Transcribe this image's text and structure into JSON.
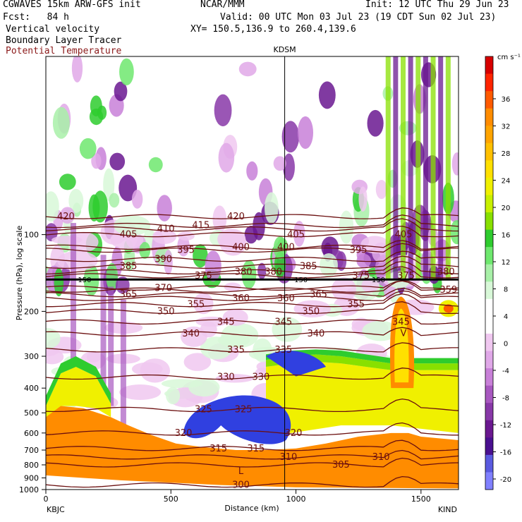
{
  "header": {
    "model": "CGWAVES 15km ARW-GFS init",
    "org": "NCAR/MMM",
    "init": "Init: 12 UTC Thu 29 Jun 23",
    "fcst": "Fcst:   84 h",
    "valid": "Valid: 00 UTC Mon 03 Jul 23 (19 CDT Sun 02 Jul 23)",
    "field1": "Vertical velocity",
    "field2": "Boundary Layer Tracer",
    "field3": "Potential Temperature",
    "xy": "XY= 150.5,136.9 to 260.4,139.6",
    "field3_color": "#8b1a1a"
  },
  "chart_data": {
    "type": "heatmap",
    "title": "",
    "station_marker": "KDSM",
    "station_marker_km": 955,
    "xlabel": "Distance (km)",
    "ylabel": "Pressure (hPa), log scale",
    "xlim": [
      0,
      1650
    ],
    "ylim": [
      1000,
      20
    ],
    "y_scale": "log",
    "x_ticks": [
      0,
      500,
      1000,
      1500
    ],
    "x_tick_labels": [
      "0",
      "500",
      "1000",
      "1500"
    ],
    "y_ticks": [
      100,
      200,
      300,
      400,
      500,
      600,
      700,
      800,
      900,
      1000
    ],
    "y_tick_labels": [
      "100",
      "200",
      "300",
      "400",
      "500",
      "600",
      "700",
      "800",
      "900",
      "1000"
    ],
    "left_endpoint": "KBJC",
    "right_endpoint": "KIND",
    "tropopause_marker": {
      "pressure": 150,
      "label": "150"
    },
    "colorbar": {
      "units": "cm s⁻¹",
      "labels": [
        "36",
        "32",
        "28",
        "24",
        "20",
        "16",
        "12",
        "8",
        "4",
        "0",
        "-4",
        "-8",
        "-12",
        "-16",
        "-20"
      ],
      "colors": [
        "#d70000",
        "#ff2400",
        "#ff5a00",
        "#ff8c00",
        "#ffa400",
        "#ffc000",
        "#ffe000",
        "#f0f000",
        "#c8f000",
        "#88e000",
        "#2ecc2e",
        "#6ee86e",
        "#a8f0a8",
        "#d8f8d8",
        "#ffffff",
        "#ffffff",
        "#f0c8f0",
        "#e0a8e8",
        "#c880d8",
        "#a858c0",
        "#8838a8",
        "#6a1890",
        "#4a1090",
        "#5a5ae0",
        "#8080ff"
      ]
    },
    "theta_contours": [
      {
        "value": 420,
        "p": 85,
        "labels_km": [
          80,
          760
        ]
      },
      {
        "value": 415,
        "p": 92,
        "labels_km": [
          620
        ]
      },
      {
        "value": 410,
        "p": 95,
        "labels_km": [
          480
        ]
      },
      {
        "value": 405,
        "p": 100,
        "labels_km": [
          330,
          1000,
          1430
        ]
      },
      {
        "value": 400,
        "p": 112,
        "labels_km": [
          780,
          960
        ]
      },
      {
        "value": 395,
        "p": 115,
        "labels_km": [
          560,
          1250
        ]
      },
      {
        "value": 390,
        "p": 125,
        "labels_km": [
          470
        ]
      },
      {
        "value": 385,
        "p": 133,
        "labels_km": [
          330,
          1050
        ]
      },
      {
        "value": 380,
        "p": 140,
        "labels_km": [
          790,
          910,
          1600
        ]
      },
      {
        "value": 375,
        "p": 145,
        "labels_km": [
          630,
          1260,
          1440
        ]
      },
      {
        "value": 370,
        "p": 162,
        "labels_km": [
          470
        ]
      },
      {
        "value": 365,
        "p": 172,
        "labels_km": [
          330,
          1090
        ]
      },
      {
        "value": 360,
        "p": 178,
        "labels_km": [
          780,
          960
        ]
      },
      {
        "value": 359,
        "p": 165,
        "labels_km": [
          1610
        ]
      },
      {
        "value": 355,
        "p": 188,
        "labels_km": [
          600,
          1240
        ]
      },
      {
        "value": 350,
        "p": 200,
        "labels_km": [
          480,
          1060
        ]
      },
      {
        "value": 345,
        "p": 220,
        "labels_km": [
          720,
          950,
          1420
        ]
      },
      {
        "value": 340,
        "p": 245,
        "labels_km": [
          580,
          1080
        ]
      },
      {
        "value": 335,
        "p": 283,
        "labels_km": [
          760,
          950
        ]
      },
      {
        "value": 330,
        "p": 362,
        "labels_km": [
          720,
          860
        ]
      },
      {
        "value": 325,
        "p": 485,
        "labels_km": [
          630,
          790
        ]
      },
      {
        "value": 320,
        "p": 600,
        "labels_km": [
          550,
          990
        ]
      },
      {
        "value": 315,
        "p": 690,
        "labels_km": [
          690,
          840
        ]
      },
      {
        "value": 310,
        "p": 745,
        "labels_km": [
          970,
          1340
        ]
      },
      {
        "value": 305,
        "p": 800,
        "labels_km": [
          1180
        ]
      },
      {
        "value": 300,
        "p": 960,
        "labels_km": [
          780
        ]
      }
    ],
    "low_marker": {
      "label": "L",
      "km": 780,
      "p": 870
    },
    "v_marker": {
      "label": "V",
      "km": 1430,
      "p": 250
    },
    "regions": [
      {
        "name": "boundary-layer-tracer",
        "min_pressure": 350,
        "max_pressure": 900
      },
      {
        "name": "updraft-plume",
        "km_range": [
          1380,
          1480
        ],
        "pressure_range": [
          180,
          400
        ]
      }
    ]
  }
}
